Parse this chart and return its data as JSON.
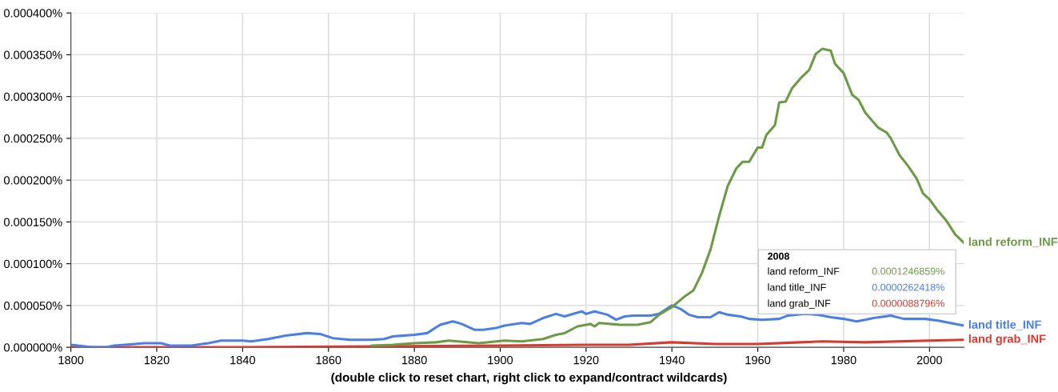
{
  "chart_data": {
    "type": "line",
    "xlim": [
      1800,
      2008
    ],
    "xticks": [
      1800,
      1820,
      1840,
      1860,
      1880,
      1900,
      1920,
      1940,
      1960,
      1980,
      2000
    ],
    "ylim": [
      0,
      0.0004
    ],
    "yticks": [
      {
        "value": 0,
        "label": "0.000000%"
      },
      {
        "value": 5e-05,
        "label": "0.000050%"
      },
      {
        "value": 0.0001,
        "label": "0.000100%"
      },
      {
        "value": 0.00015,
        "label": "0.000150%"
      },
      {
        "value": 0.0002,
        "label": "0.000200%"
      },
      {
        "value": 0.00025,
        "label": "0.000250%"
      },
      {
        "value": 0.0003,
        "label": "0.000300%"
      },
      {
        "value": 0.00035,
        "label": "0.000350%"
      },
      {
        "value": 0.0004,
        "label": "0.000400%"
      }
    ],
    "grid": true,
    "legend": false,
    "marker": "none",
    "line_style": "solid",
    "series": [
      {
        "name": "land reform_INF",
        "color": "#6b9b45",
        "x": [
          1870,
          1875,
          1880,
          1885,
          1888,
          1895,
          1901,
          1905,
          1910,
          1913,
          1915,
          1918,
          1921,
          1922,
          1923,
          1928,
          1932,
          1935,
          1937,
          1940,
          1943,
          1945,
          1947,
          1949,
          1951,
          1953,
          1955,
          1956.5,
          1958,
          1960,
          1961,
          1962,
          1964,
          1965,
          1966.5,
          1968,
          1970,
          1972,
          1973.5,
          1975,
          1977,
          1978,
          1980,
          1982,
          1983.5,
          1985,
          1986.5,
          1988,
          1990,
          1991,
          1993,
          1995,
          1997,
          1998.5,
          2000,
          2002,
          2004,
          2006,
          2008
        ],
        "values": [
          2e-06,
          3e-06,
          5e-06,
          6e-06,
          8e-06,
          5e-06,
          8e-06,
          7e-06,
          1e-05,
          1.5e-05,
          1.7e-05,
          2.5e-05,
          2.8e-05,
          2.5e-05,
          2.9e-05,
          2.7e-05,
          2.7e-05,
          3e-05,
          3.9e-05,
          4.8e-05,
          6.1e-05,
          6.8e-05,
          8.9e-05,
          0.000117,
          0.000157,
          0.000193,
          0.000214,
          0.000222,
          0.000222,
          0.000239,
          0.000239,
          0.000254,
          0.000266,
          0.000293,
          0.000294,
          0.00031,
          0.000322,
          0.000332,
          0.000351,
          0.000357,
          0.000355,
          0.000339,
          0.000328,
          0.000302,
          0.000296,
          0.000281,
          0.000272,
          0.000263,
          0.000257,
          0.00025,
          0.00023,
          0.000217,
          0.000202,
          0.000184,
          0.000177,
          0.000163,
          0.000151,
          0.000135,
          0.000125
        ]
      },
      {
        "name": "land title_INF",
        "color": "#4a7fe6",
        "x": [
          1800,
          1805,
          1808,
          1810,
          1815,
          1817,
          1821,
          1823,
          1828,
          1832,
          1835,
          1840,
          1842,
          1846,
          1850,
          1855,
          1858,
          1861,
          1865,
          1870,
          1873,
          1875,
          1880,
          1883,
          1886,
          1889,
          1891,
          1894,
          1896,
          1899,
          1901,
          1905,
          1907,
          1910,
          1913,
          1915,
          1919,
          1920,
          1922,
          1925,
          1927,
          1929,
          1931,
          1935,
          1937,
          1940,
          1942,
          1944,
          1946,
          1949,
          1951,
          1953,
          1956,
          1958,
          1961,
          1965,
          1967,
          1971,
          1974,
          1977,
          1980,
          1983,
          1985,
          1987,
          1991,
          1994,
          1999,
          2002,
          2008
        ],
        "values": [
          3e-06,
          0,
          0,
          2e-06,
          4e-06,
          5e-06,
          5e-06,
          2e-06,
          2e-06,
          5e-06,
          8e-06,
          8e-06,
          7e-06,
          1e-05,
          1.4e-05,
          1.7e-05,
          1.6e-05,
          1.1e-05,
          9e-06,
          9e-06,
          1e-05,
          1.3e-05,
          1.5e-05,
          1.7e-05,
          2.7e-05,
          3.1e-05,
          2.8e-05,
          2.1e-05,
          2.1e-05,
          2.3e-05,
          2.6e-05,
          2.9e-05,
          2.8e-05,
          3.5e-05,
          4e-05,
          3.7e-05,
          4.3e-05,
          4e-05,
          4.3e-05,
          3.9e-05,
          3.3e-05,
          3.7e-05,
          3.8e-05,
          3.8e-05,
          4e-05,
          5e-05,
          4.6e-05,
          3.9e-05,
          3.6e-05,
          3.6e-05,
          4.2e-05,
          3.9e-05,
          3.7e-05,
          3.4e-05,
          3.3e-05,
          3.4e-05,
          3.8e-05,
          4e-05,
          3.9e-05,
          3.6e-05,
          3.4e-05,
          3.1e-05,
          3.3e-05,
          3.5e-05,
          3.8e-05,
          3.4e-05,
          3.4e-05,
          3.2e-05,
          2.6e-05
        ]
      },
      {
        "name": "land grab_INF",
        "color": "#d93a30",
        "x": [
          1800,
          1840,
          1870,
          1900,
          1920,
          1930,
          1940,
          1950,
          1960,
          1970,
          1975,
          1985,
          2000,
          2008
        ],
        "values": [
          0,
          0,
          1e-06,
          2e-06,
          3e-06,
          3e-06,
          6e-06,
          4e-06,
          4e-06,
          6e-06,
          7e-06,
          6e-06,
          8e-06,
          9e-06
        ]
      }
    ],
    "annotations": [
      "(double click to reset chart, right click to expand/contract wildcards)",
      "2008",
      "land reform_INF",
      "0.0001246859%",
      "land title_INF",
      "0.0000262418%",
      "land grab_INF",
      "0.0000088796%"
    ]
  }
}
